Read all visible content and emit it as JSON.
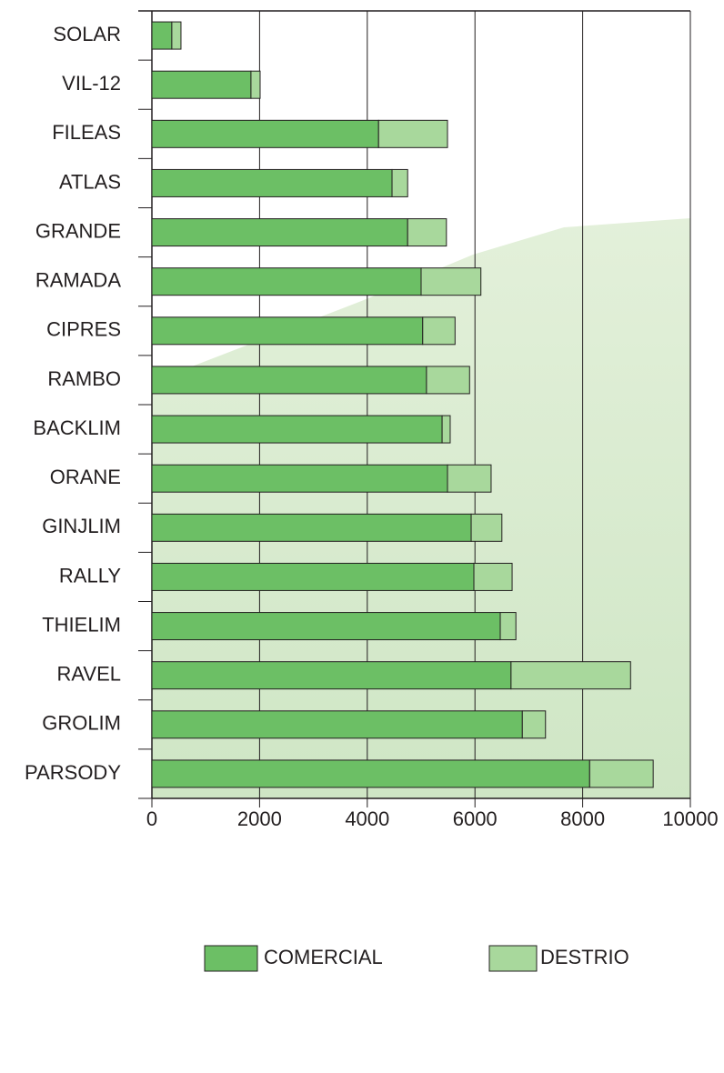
{
  "chart_data": {
    "type": "stacked_barh",
    "categories": [
      "SOLAR",
      "VIL-12",
      "FILEAS",
      "ATLAS",
      "GRANDE",
      "RAMADA",
      "CIPRES",
      "RAMBO",
      "BACKLIM",
      "ORANE",
      "GINJLIM",
      "RALLY",
      "THIELIM",
      "RAVEL",
      "GROLIM",
      "PARSODY"
    ],
    "series": [
      {
        "name": "COMERCIAL",
        "color": "#6cbf65",
        "values": [
          370,
          1840,
          4210,
          4460,
          4750,
          5000,
          5030,
          5100,
          5390,
          5490,
          5930,
          5980,
          6470,
          6670,
          6880,
          8130
        ]
      },
      {
        "name": "DESTRIO",
        "color": "#a8d89c",
        "values": [
          170,
          170,
          1280,
          290,
          720,
          1110,
          600,
          800,
          150,
          810,
          570,
          710,
          290,
          2220,
          430,
          1180
        ]
      }
    ],
    "xlim": [
      0,
      10000
    ],
    "xticks": [
      0,
      2000,
      4000,
      6000,
      8000,
      10000
    ],
    "grid": true,
    "legend": "bottom"
  }
}
